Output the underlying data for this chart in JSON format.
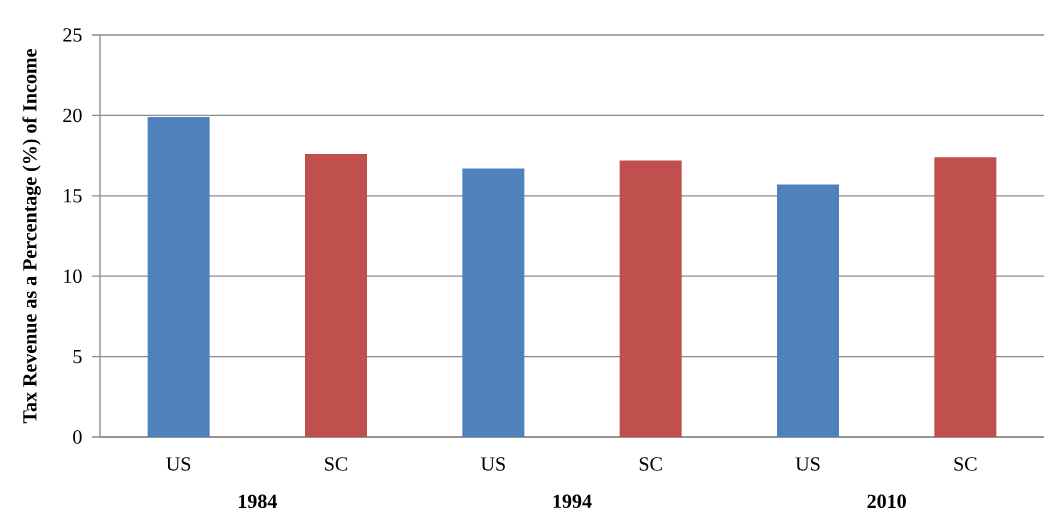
{
  "chart_data": {
    "type": "bar",
    "ylabel": "Tax Revenue as a Percentage (%) of Income",
    "categories": [
      "US",
      "SC",
      "US",
      "SC",
      "US",
      "SC"
    ],
    "values": [
      19.9,
      17.6,
      16.7,
      17.2,
      15.7,
      17.4
    ],
    "colors": [
      "#4f81bd",
      "#c0504d",
      "#4f81bd",
      "#c0504d",
      "#4f81bd",
      "#c0504d"
    ],
    "annotations": [
      "1984",
      "1994",
      "2010"
    ],
    "ylim": [
      0,
      25
    ],
    "yticks": [
      0,
      5,
      10,
      15,
      20,
      25
    ],
    "grid": "y"
  }
}
